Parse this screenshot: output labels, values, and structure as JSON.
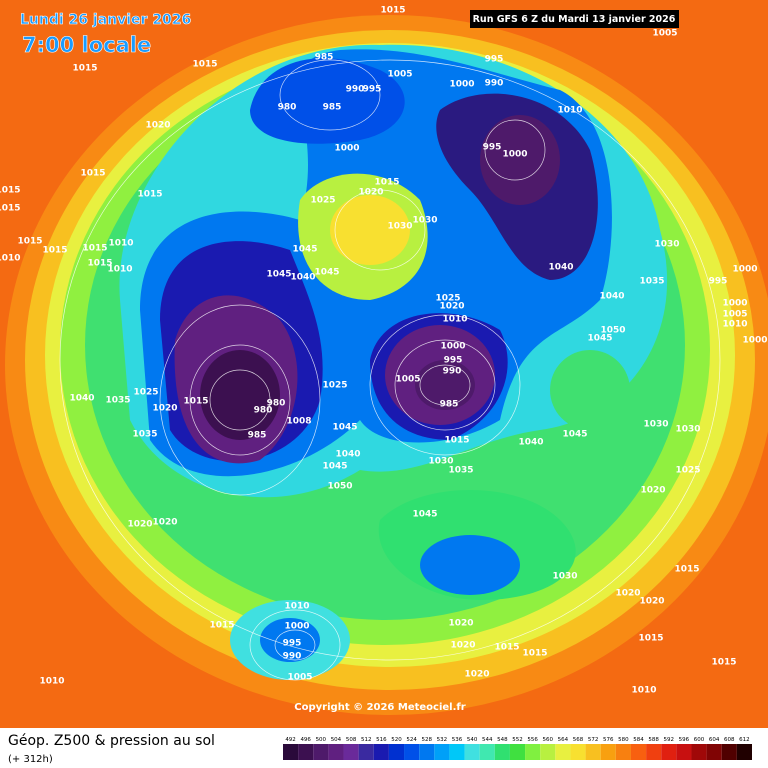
{
  "header": {
    "title": "Lundi 26 janvier 2026",
    "time": "7:00 locale",
    "run": "Run GFS 6 Z du Mardi 13 janvier 2026",
    "copyright": "Copyright © 2026 Meteociel.fr"
  },
  "footer": {
    "title": "Géop. Z500 & pression au sol",
    "lead": "(+ 312h)"
  },
  "legend": {
    "values": [
      492,
      496,
      500,
      504,
      508,
      512,
      516,
      520,
      524,
      528,
      532,
      536,
      540,
      544,
      548,
      552,
      556,
      560,
      564,
      568,
      572,
      576,
      580,
      584,
      588,
      592,
      596,
      600,
      604,
      608,
      612
    ],
    "colors": [
      "#2a0a3a",
      "#3c1050",
      "#4e1a6a",
      "#602080",
      "#6a2a9a",
      "#3a2aa0",
      "#1a1ab0",
      "#0030d0",
      "#0050e8",
      "#0078f0",
      "#00a0f8",
      "#00c8f8",
      "#40e0e0",
      "#40e8b0",
      "#30e070",
      "#40e040",
      "#80f040",
      "#b8f040",
      "#e8f040",
      "#f8e030",
      "#f8c020",
      "#f8a010",
      "#f88010",
      "#f86010",
      "#f04010",
      "#e02010",
      "#c81010",
      "#a00808",
      "#800404",
      "#500000",
      "#200000"
    ]
  },
  "isobar_labels": [
    1015,
    1005,
    985,
    995,
    990,
    1005,
    1000,
    990,
    995,
    980,
    985,
    1010,
    1015,
    1015,
    1020,
    1000,
    995,
    1000,
    1015,
    1015,
    1015,
    1015,
    1020,
    1015,
    1025,
    1030,
    1030,
    1045,
    1030,
    1040,
    1035,
    1000,
    995,
    1040,
    1025,
    1020,
    1010,
    1050,
    1045,
    1000,
    995,
    990,
    1005,
    985,
    1015,
    1040,
    1045,
    1030,
    1030,
    1025,
    1020,
    1035,
    1030,
    1045,
    1040,
    1045,
    1050,
    1025,
    1008,
    980,
    980,
    985,
    1025,
    1035,
    1040,
    1035,
    1020,
    1015,
    1045,
    1030,
    1020,
    1020,
    1015,
    1015,
    1015,
    1010,
    1020,
    1020,
    1015,
    1015,
    1020,
    1010,
    1000,
    995,
    990,
    1005,
    1015,
    1010,
    1020,
    1020,
    1015,
    1010,
    1045,
    1040,
    1045,
    1015,
    1015,
    1010,
    1015,
    1010,
    1000,
    1010,
    1005,
    1000
  ]
}
